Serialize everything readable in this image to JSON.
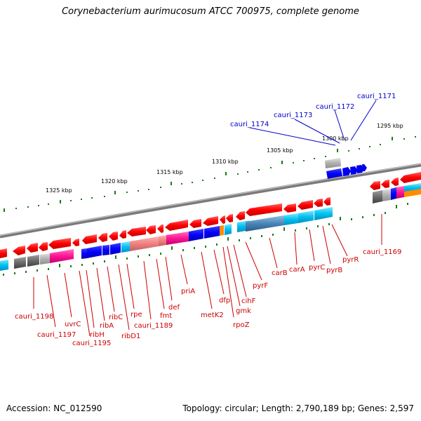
{
  "title": "Corynebacterium aurimucosum ATCC 700975, complete genome",
  "footer": {
    "accession": "Accession: NC_012590",
    "topology": "Topology: circular; Length: 2,790,189 bp; Genes: 2,597"
  },
  "scale_labels": [
    "1325 kbp",
    "1320 kbp",
    "1315 kbp",
    "1310 kbp",
    "1305 kbp",
    "1300 kbp",
    "1295 kbp"
  ],
  "gene_labels_top": [
    "cauri_1174",
    "cauri_1173",
    "cauri_1172",
    "cauri_1171"
  ],
  "gene_labels_bottom": [
    "cauri_1198",
    "cauri_1197",
    "uvrC",
    "cauri_1195",
    "ribH",
    "ribA",
    "ribC",
    "ribD1",
    "rpe",
    "cauri_1189",
    "fmt",
    "def",
    "priA",
    "metK2",
    "dfp",
    "rpoZ",
    "gmk",
    "cihF",
    "pyrF",
    "carB",
    "carA",
    "pyrC",
    "pyrB",
    "pyrR",
    "cauri_1169"
  ],
  "colors": {
    "forward_gene": "#ff0000",
    "reverse_gene": "#0000ff",
    "label_red": "#cc0000",
    "label_blue": "#0000cc",
    "backbone": "#808080",
    "tick": "#1a7a1a",
    "cyan": "#00ccff",
    "magenta": "#ff1493",
    "salmon": "#f08080",
    "gray": "#707070",
    "orange": "#ff8c00"
  }
}
